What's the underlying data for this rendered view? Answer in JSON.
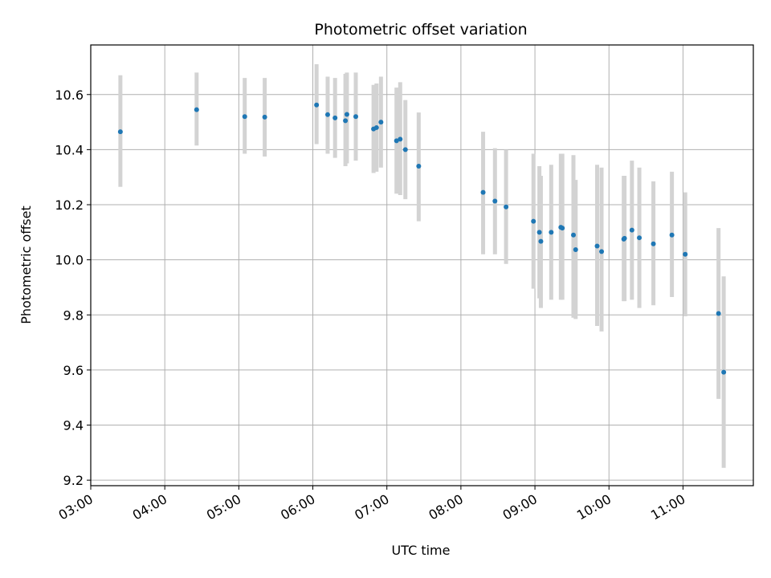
{
  "chart_data": {
    "type": "scatter",
    "title": "Photometric offset variation",
    "xlabel": "UTC time",
    "ylabel": "Photometric offset",
    "x_unit": "hours UTC",
    "xlim": [
      3.0,
      11.95
    ],
    "ylim": [
      9.18,
      10.78
    ],
    "x_ticks": [
      3,
      4,
      5,
      6,
      7,
      8,
      9,
      10,
      11
    ],
    "x_tick_labels": [
      "03:00",
      "04:00",
      "05:00",
      "06:00",
      "07:00",
      "08:00",
      "09:00",
      "10:00",
      "11:00"
    ],
    "y_ticks": [
      9.2,
      9.4,
      9.6,
      9.8,
      10.0,
      10.2,
      10.4,
      10.6
    ],
    "y_tick_labels": [
      "9.2",
      "9.4",
      "9.6",
      "9.8",
      "10.0",
      "10.2",
      "10.4",
      "10.6"
    ],
    "grid": true,
    "colors": {
      "point": "#1f77b4",
      "errorbar": "#d3d3d3",
      "grid": "#b0b0b0"
    },
    "series": [
      {
        "points": [
          {
            "x": 3.4,
            "y": 10.465,
            "low": 10.265,
            "high": 10.67
          },
          {
            "x": 4.43,
            "y": 10.545,
            "low": 10.415,
            "high": 10.68
          },
          {
            "x": 5.08,
            "y": 10.52,
            "low": 10.385,
            "high": 10.66
          },
          {
            "x": 5.35,
            "y": 10.518,
            "low": 10.375,
            "high": 10.66
          },
          {
            "x": 6.05,
            "y": 10.562,
            "low": 10.42,
            "high": 10.71
          },
          {
            "x": 6.2,
            "y": 10.527,
            "low": 10.385,
            "high": 10.665
          },
          {
            "x": 6.3,
            "y": 10.515,
            "low": 10.37,
            "high": 10.66
          },
          {
            "x": 6.44,
            "y": 10.505,
            "low": 10.34,
            "high": 10.675
          },
          {
            "x": 6.46,
            "y": 10.528,
            "low": 10.35,
            "high": 10.68
          },
          {
            "x": 6.58,
            "y": 10.52,
            "low": 10.36,
            "high": 10.68
          },
          {
            "x": 6.82,
            "y": 10.475,
            "low": 10.315,
            "high": 10.635
          },
          {
            "x": 6.86,
            "y": 10.48,
            "low": 10.32,
            "high": 10.64
          },
          {
            "x": 6.92,
            "y": 10.5,
            "low": 10.335,
            "high": 10.665
          },
          {
            "x": 7.13,
            "y": 10.432,
            "low": 10.24,
            "high": 10.625
          },
          {
            "x": 7.18,
            "y": 10.438,
            "low": 10.235,
            "high": 10.645
          },
          {
            "x": 7.25,
            "y": 10.4,
            "low": 10.22,
            "high": 10.58
          },
          {
            "x": 7.43,
            "y": 10.34,
            "low": 10.14,
            "high": 10.535
          },
          {
            "x": 8.3,
            "y": 10.245,
            "low": 10.02,
            "high": 10.465
          },
          {
            "x": 8.46,
            "y": 10.213,
            "low": 10.02,
            "high": 10.405
          },
          {
            "x": 8.61,
            "y": 10.192,
            "low": 9.985,
            "high": 10.4
          },
          {
            "x": 8.98,
            "y": 10.14,
            "low": 9.895,
            "high": 10.385
          },
          {
            "x": 9.06,
            "y": 10.1,
            "low": 9.86,
            "high": 10.34
          },
          {
            "x": 9.08,
            "y": 10.067,
            "low": 9.825,
            "high": 10.305
          },
          {
            "x": 9.22,
            "y": 10.1,
            "low": 9.855,
            "high": 10.345
          },
          {
            "x": 9.35,
            "y": 10.118,
            "low": 9.855,
            "high": 10.385
          },
          {
            "x": 9.37,
            "y": 10.115,
            "low": 9.855,
            "high": 10.385
          },
          {
            "x": 9.52,
            "y": 10.09,
            "low": 9.79,
            "high": 10.38
          },
          {
            "x": 9.55,
            "y": 10.037,
            "low": 9.785,
            "high": 10.29
          },
          {
            "x": 9.84,
            "y": 10.05,
            "low": 9.76,
            "high": 10.345
          },
          {
            "x": 9.9,
            "y": 10.03,
            "low": 9.74,
            "high": 10.335
          },
          {
            "x": 10.2,
            "y": 10.075,
            "low": 9.85,
            "high": 10.305
          },
          {
            "x": 10.21,
            "y": 10.078,
            "low": 9.85,
            "high": 10.305
          },
          {
            "x": 10.31,
            "y": 10.108,
            "low": 9.855,
            "high": 10.36
          },
          {
            "x": 10.41,
            "y": 10.08,
            "low": 9.825,
            "high": 10.335
          },
          {
            "x": 10.6,
            "y": 10.058,
            "low": 9.835,
            "high": 10.285
          },
          {
            "x": 10.85,
            "y": 10.09,
            "low": 9.865,
            "high": 10.32
          },
          {
            "x": 11.03,
            "y": 10.02,
            "low": 9.795,
            "high": 10.245
          },
          {
            "x": 11.48,
            "y": 9.805,
            "low": 9.495,
            "high": 10.115
          },
          {
            "x": 11.55,
            "y": 9.592,
            "low": 9.245,
            "high": 9.94
          }
        ]
      }
    ]
  }
}
